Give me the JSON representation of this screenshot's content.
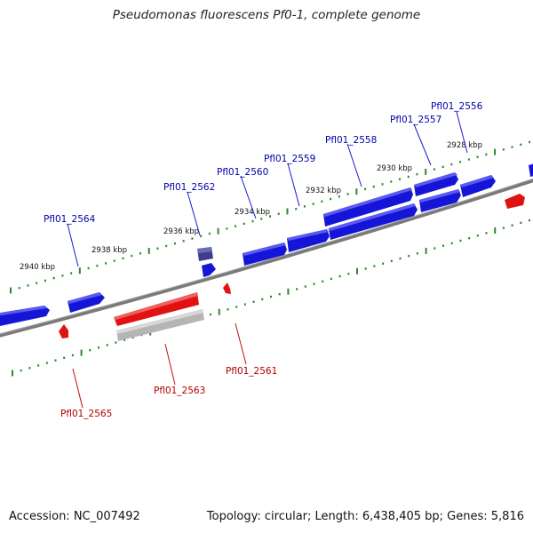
{
  "title": "Pseudomonas fluorescens Pf0-1, complete genome",
  "footer": {
    "accession": "Accession: NC_007492",
    "summary": "Topology: circular; Length: 6,438,405 bp; Genes: 5,816"
  },
  "colors": {
    "forward_gene": "#1010e0",
    "reverse_gene": "#e01010",
    "selected_gene": "#44448a",
    "pseudo_gene": "#b8b8b8",
    "backbone": "#888888",
    "tick": "#2a8a2a",
    "forward_label": "#0000aa",
    "reverse_label": "#b00000"
  },
  "kbp_ticks": [
    "2928 kbp",
    "2930 kbp",
    "2932 kbp",
    "2934 kbp",
    "2936 kbp",
    "2938 kbp",
    "2940 kbp"
  ],
  "forward_labels": [
    "Pfl01_2556",
    "Pfl01_2557",
    "Pfl01_2558",
    "Pfl01_2559",
    "Pfl01_2560",
    "Pfl01_2562",
    "Pfl01_2564"
  ],
  "reverse_labels": [
    "Pfl01_2561",
    "Pfl01_2563",
    "Pfl01_2565"
  ]
}
